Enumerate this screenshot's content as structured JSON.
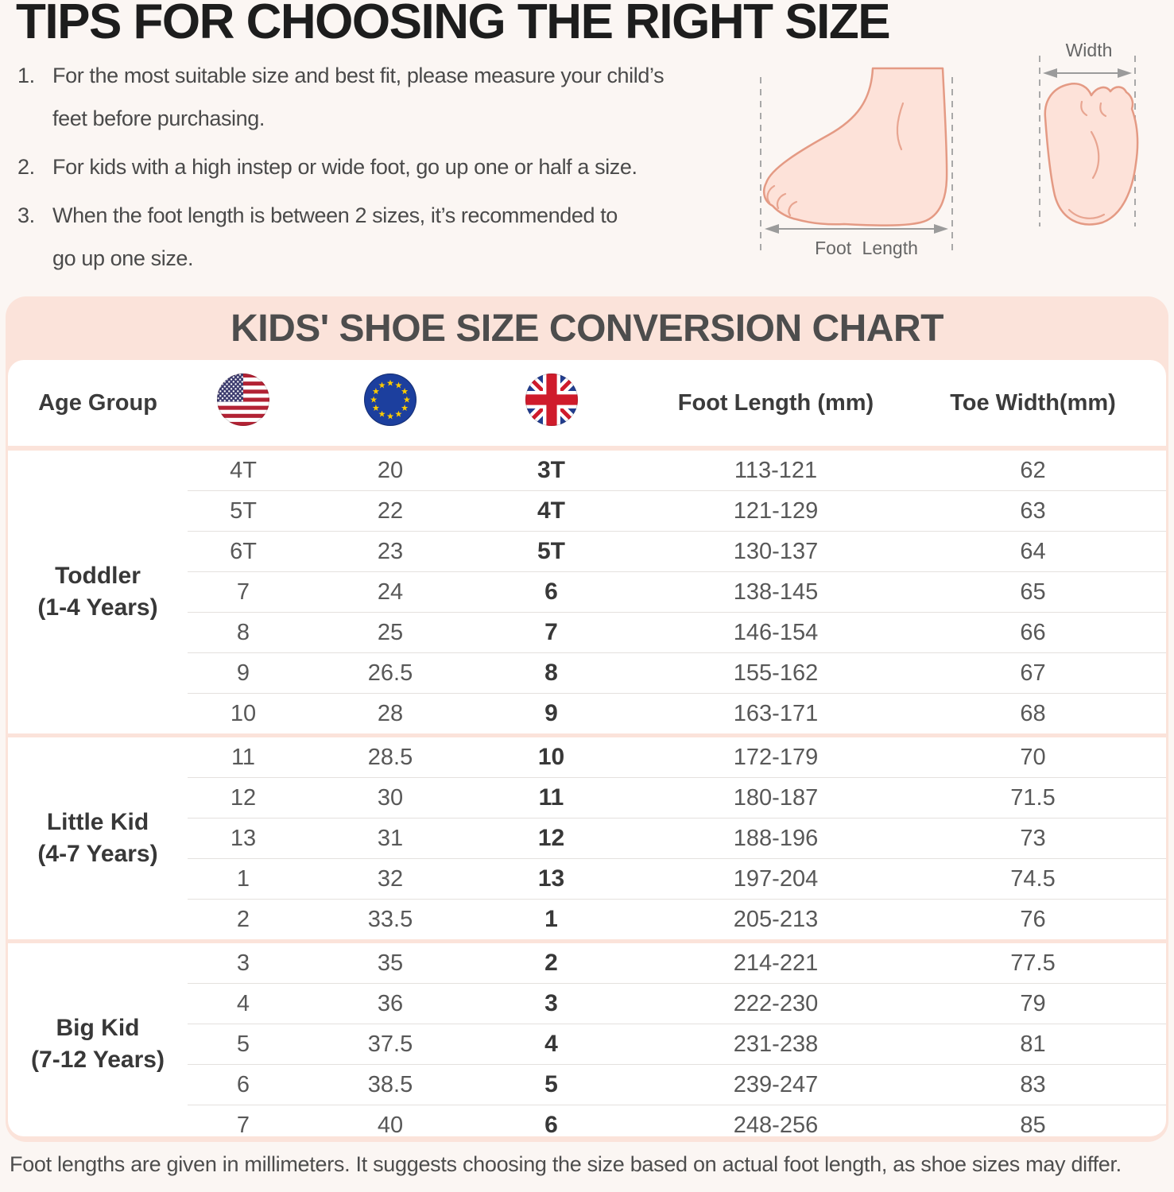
{
  "header": {
    "title": "TIPS FOR CHOOSING THE RIGHT SIZE"
  },
  "tips": {
    "items": [
      {
        "number": "1.",
        "text": "For the most suitable size and best fit, please measure your child’s feet before purchasing."
      },
      {
        "number": "2.",
        "text": "For kids with a high instep or wide foot, go up one or half a size."
      },
      {
        "number": "3.",
        "text": "When the foot length is between 2 sizes, it’s recommended to go up one size."
      }
    ]
  },
  "diagram": {
    "foot_length_label": "Foot Length",
    "width_label": "Width"
  },
  "chart_data": {
    "type": "table",
    "title": "KIDS' SHOE SIZE CONVERSION CHART",
    "header": {
      "age": "Age Group",
      "flags": [
        "us-flag-icon",
        "eu-flag-icon",
        "uk-flag-icon"
      ],
      "foot_length": "Foot Length (mm)",
      "toe_width": "Toe Width(mm)"
    },
    "columns": [
      "Age Group",
      "US",
      "EU",
      "UK",
      "Foot Length (mm)",
      "Toe Width(mm)"
    ],
    "groups": [
      {
        "label": "Toddler",
        "years": "(1-4 Years)",
        "rows": [
          [
            "4T",
            "20",
            "3T",
            "113-121",
            "62"
          ],
          [
            "5T",
            "22",
            "4T",
            "121-129",
            "63"
          ],
          [
            "6T",
            "23",
            "5T",
            "130-137",
            "64"
          ],
          [
            "7",
            "24",
            "6",
            "138-145",
            "65"
          ],
          [
            "8",
            "25",
            "7",
            "146-154",
            "66"
          ],
          [
            "9",
            "26.5",
            "8",
            "155-162",
            "67"
          ],
          [
            "10",
            "28",
            "9",
            "163-171",
            "68"
          ]
        ]
      },
      {
        "label": "Little Kid",
        "years": "(4-7 Years)",
        "rows": [
          [
            "11",
            "28.5",
            "10",
            "172-179",
            "70"
          ],
          [
            "12",
            "30",
            "11",
            "180-187",
            "71.5"
          ],
          [
            "13",
            "31",
            "12",
            "188-196",
            "73"
          ],
          [
            "1",
            "32",
            "13",
            "197-204",
            "74.5"
          ],
          [
            "2",
            "33.5",
            "1",
            "205-213",
            "76"
          ]
        ]
      },
      {
        "label": "Big Kid",
        "years": "(7-12 Years)",
        "rows": [
          [
            "3",
            "35",
            "2",
            "214-221",
            "77.5"
          ],
          [
            "4",
            "36",
            "3",
            "222-230",
            "79"
          ],
          [
            "5",
            "37.5",
            "4",
            "231-238",
            "81"
          ],
          [
            "6",
            "38.5",
            "5",
            "239-247",
            "83"
          ],
          [
            "7",
            "40",
            "6",
            "248-256",
            "85"
          ]
        ]
      }
    ]
  },
  "footnote": "Foot lengths are given in millimeters. It suggests choosing the size based on actual foot length, as shoe sizes may differ.",
  "colors": {
    "accent_pink": "#fbe3da",
    "page_bg": "#fbf6f3",
    "title_black": "#1d1d1d",
    "skin_fill": "#fde2d9",
    "skin_stroke": "#e49a84",
    "us_flag_blue": "#3c3b6e",
    "us_flag_red": "#b22234",
    "eu_flag_blue": "#1c3f9e",
    "eu_flag_gold": "#ffcc00",
    "uk_flag_blue": "#233e8f",
    "uk_flag_red": "#cf1b2b"
  }
}
